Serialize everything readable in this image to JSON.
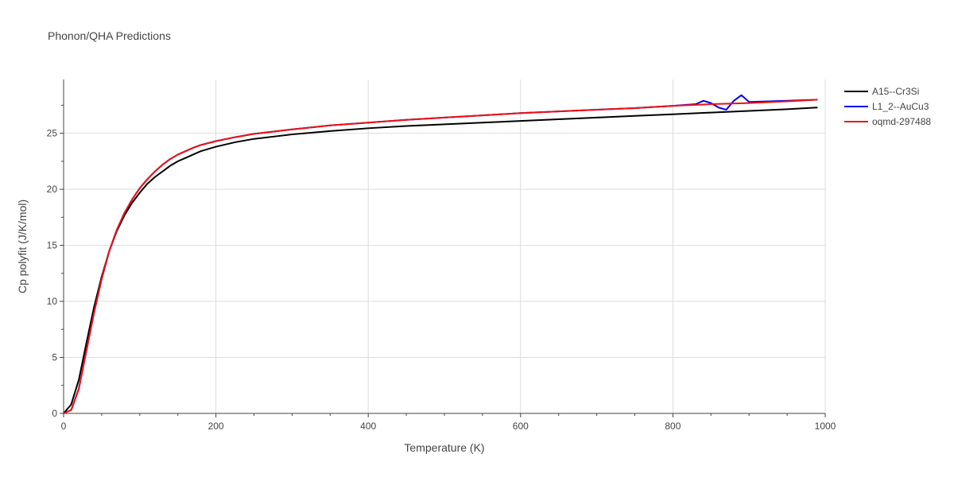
{
  "chart_data": {
    "type": "line",
    "title": "Phonon/QHA Predictions",
    "xlabel": "Temperature (K)",
    "ylabel": "Cp polyfit (J/K/mol)",
    "xlim": [
      0,
      1000
    ],
    "ylim": [
      0,
      29.8
    ],
    "xticks": [
      0,
      200,
      400,
      600,
      800,
      1000
    ],
    "yticks": [
      0,
      5,
      10,
      15,
      20,
      25
    ],
    "grid": true,
    "legend_position": "top-right",
    "series": [
      {
        "name": "A15--Cr3Si",
        "color": "#000000",
        "x": [
          0,
          10,
          20,
          30,
          40,
          50,
          60,
          70,
          80,
          90,
          100,
          110,
          120,
          130,
          140,
          150,
          160,
          170,
          180,
          200,
          225,
          250,
          300,
          350,
          400,
          450,
          500,
          550,
          600,
          650,
          700,
          750,
          800,
          850,
          900,
          950,
          990
        ],
        "y": [
          0,
          0.8,
          3.0,
          6.3,
          9.5,
          12.2,
          14.5,
          16.3,
          17.7,
          18.8,
          19.7,
          20.5,
          21.1,
          21.6,
          22.1,
          22.5,
          22.8,
          23.1,
          23.4,
          23.8,
          24.2,
          24.5,
          24.9,
          25.2,
          25.45,
          25.65,
          25.8,
          25.95,
          26.1,
          26.25,
          26.4,
          26.55,
          26.7,
          26.85,
          27.0,
          27.15,
          27.3
        ]
      },
      {
        "name": "L1_2--AuCu3",
        "color": "#0000ee",
        "x": [
          0,
          10,
          20,
          30,
          40,
          50,
          60,
          70,
          80,
          90,
          100,
          110,
          120,
          130,
          140,
          150,
          160,
          170,
          180,
          200,
          225,
          250,
          300,
          350,
          400,
          450,
          500,
          550,
          600,
          650,
          700,
          750,
          800,
          830,
          840,
          850,
          860,
          870,
          880,
          890,
          900,
          950,
          990
        ],
        "y": [
          0,
          0.3,
          2.2,
          5.6,
          9.0,
          12.0,
          14.5,
          16.4,
          17.9,
          19.1,
          20.1,
          20.9,
          21.6,
          22.2,
          22.7,
          23.1,
          23.4,
          23.7,
          23.95,
          24.3,
          24.65,
          24.95,
          25.35,
          25.7,
          25.95,
          26.2,
          26.4,
          26.6,
          26.8,
          26.95,
          27.1,
          27.25,
          27.45,
          27.6,
          27.9,
          27.7,
          27.3,
          27.1,
          27.9,
          28.4,
          27.8,
          27.9,
          28.0
        ]
      },
      {
        "name": "oqmd-297488",
        "color": "#ee1111",
        "x": [
          0,
          10,
          20,
          30,
          40,
          50,
          60,
          70,
          80,
          90,
          100,
          110,
          120,
          130,
          140,
          150,
          160,
          170,
          180,
          200,
          225,
          250,
          300,
          350,
          400,
          450,
          500,
          550,
          600,
          650,
          700,
          750,
          800,
          850,
          900,
          950,
          990
        ],
        "y": [
          0,
          0.3,
          2.2,
          5.6,
          9.0,
          12.0,
          14.5,
          16.4,
          17.9,
          19.1,
          20.1,
          20.9,
          21.6,
          22.2,
          22.7,
          23.1,
          23.4,
          23.7,
          23.95,
          24.3,
          24.65,
          24.95,
          25.35,
          25.7,
          25.95,
          26.2,
          26.4,
          26.6,
          26.8,
          26.95,
          27.1,
          27.25,
          27.45,
          27.6,
          27.7,
          27.85,
          28.0
        ]
      }
    ]
  }
}
